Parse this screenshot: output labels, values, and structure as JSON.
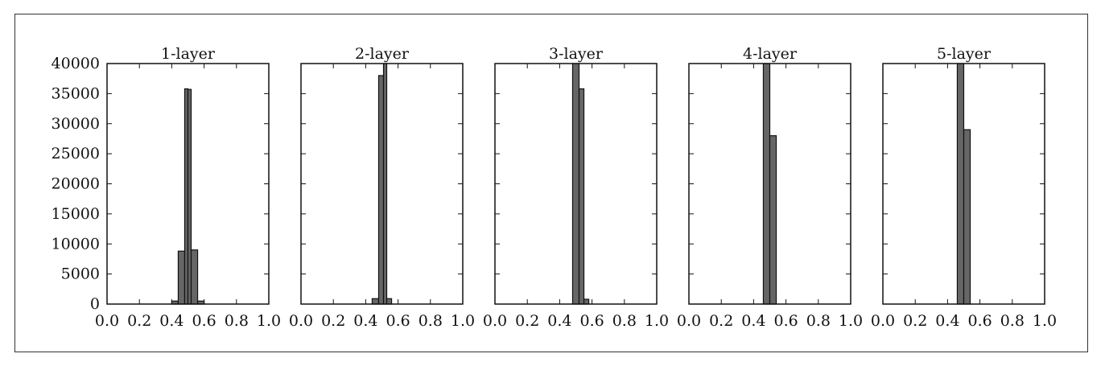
{
  "chart_data": [
    {
      "type": "bar",
      "title": "1-layer",
      "xlim": [
        0.0,
        1.0
      ],
      "ylim": [
        0,
        40000
      ],
      "xticks": [
        "0.0",
        "0.2",
        "0.4",
        "0.6",
        "0.8",
        "1.0"
      ],
      "yticks": [
        "0",
        "5000",
        "10000",
        "15000",
        "20000",
        "25000",
        "30000",
        "35000",
        "40000"
      ],
      "bins": [
        [
          0.4,
          0.44,
          500
        ],
        [
          0.44,
          0.48,
          8800
        ],
        [
          0.48,
          0.5,
          35800
        ],
        [
          0.5,
          0.52,
          35700
        ],
        [
          0.52,
          0.56,
          9000
        ],
        [
          0.56,
          0.6,
          500
        ]
      ]
    },
    {
      "type": "bar",
      "title": "2-layer",
      "xlim": [
        0.0,
        1.0
      ],
      "ylim": [
        0,
        40000
      ],
      "xticks": [
        "0.0",
        "0.2",
        "0.4",
        "0.6",
        "0.8",
        "1.0"
      ],
      "bins": [
        [
          0.44,
          0.48,
          900
        ],
        [
          0.48,
          0.51,
          38000
        ],
        [
          0.51,
          0.53,
          40000
        ],
        [
          0.53,
          0.56,
          900
        ]
      ]
    },
    {
      "type": "bar",
      "title": "3-layer",
      "xlim": [
        0.0,
        1.0
      ],
      "ylim": [
        0,
        40000
      ],
      "xticks": [
        "0.0",
        "0.2",
        "0.4",
        "0.6",
        "0.8",
        "1.0"
      ],
      "bins": [
        [
          0.48,
          0.52,
          40000
        ],
        [
          0.52,
          0.55,
          35800
        ],
        [
          0.55,
          0.58,
          800
        ]
      ]
    },
    {
      "type": "bar",
      "title": "4-layer",
      "xlim": [
        0.0,
        1.0
      ],
      "ylim": [
        0,
        40000
      ],
      "xticks": [
        "0.0",
        "0.2",
        "0.4",
        "0.6",
        "0.8",
        "1.0"
      ],
      "bins": [
        [
          0.46,
          0.5,
          40000
        ],
        [
          0.5,
          0.54,
          28000
        ]
      ]
    },
    {
      "type": "bar",
      "title": "5-layer",
      "xlim": [
        0.0,
        1.0
      ],
      "ylim": [
        0,
        40000
      ],
      "xticks": [
        "0.0",
        "0.2",
        "0.4",
        "0.6",
        "0.8",
        "1.0"
      ],
      "bins": [
        [
          0.46,
          0.5,
          40000
        ],
        [
          0.5,
          0.54,
          29000
        ]
      ]
    }
  ],
  "colors": {
    "bar_fill": "#666666",
    "bar_edge": "#111111",
    "axis": "#111111"
  }
}
